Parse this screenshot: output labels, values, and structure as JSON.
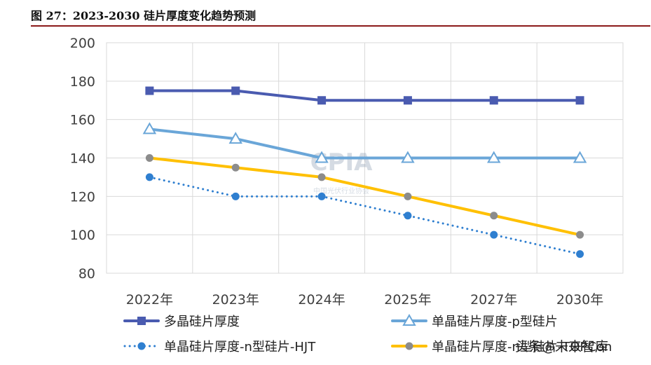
{
  "figure_title": "图 27：2023-2030 硅片厚度变化趋势预测",
  "watermark_text": "头条@未来智库",
  "logo_text": "CPIA",
  "logo_subtext": "中国光伏行业协会",
  "chart_data": {
    "type": "line",
    "categories": [
      "2022年",
      "2023年",
      "2024年",
      "2025年",
      "2027年",
      "2030年"
    ],
    "ylim": [
      80,
      200
    ],
    "yticks": [
      80,
      100,
      120,
      140,
      160,
      180,
      200
    ],
    "grid": true,
    "legend_position": "bottom",
    "series": [
      {
        "name": "多晶硅片厚度",
        "values": [
          175,
          175,
          170,
          170,
          170,
          170
        ],
        "color": "#4a5bb0",
        "marker": "square",
        "line": "solid"
      },
      {
        "name": "单晶硅片厚度-p型硅片",
        "values": [
          155,
          150,
          140,
          140,
          140,
          140
        ],
        "color": "#6aa6d8",
        "marker": "triangle",
        "line": "solid"
      },
      {
        "name": "单晶硅片厚度-n型硅片-HJT",
        "values": [
          130,
          120,
          120,
          110,
          100,
          90
        ],
        "color": "#2f7fd0",
        "marker": "circle",
        "line": "dotted"
      },
      {
        "name": "单晶硅片厚度-n型硅片-TOPCon",
        "values": [
          140,
          135,
          130,
          120,
          110,
          100
        ],
        "color": "#ffc000",
        "marker": "circle-gray",
        "line": "solid"
      }
    ]
  }
}
